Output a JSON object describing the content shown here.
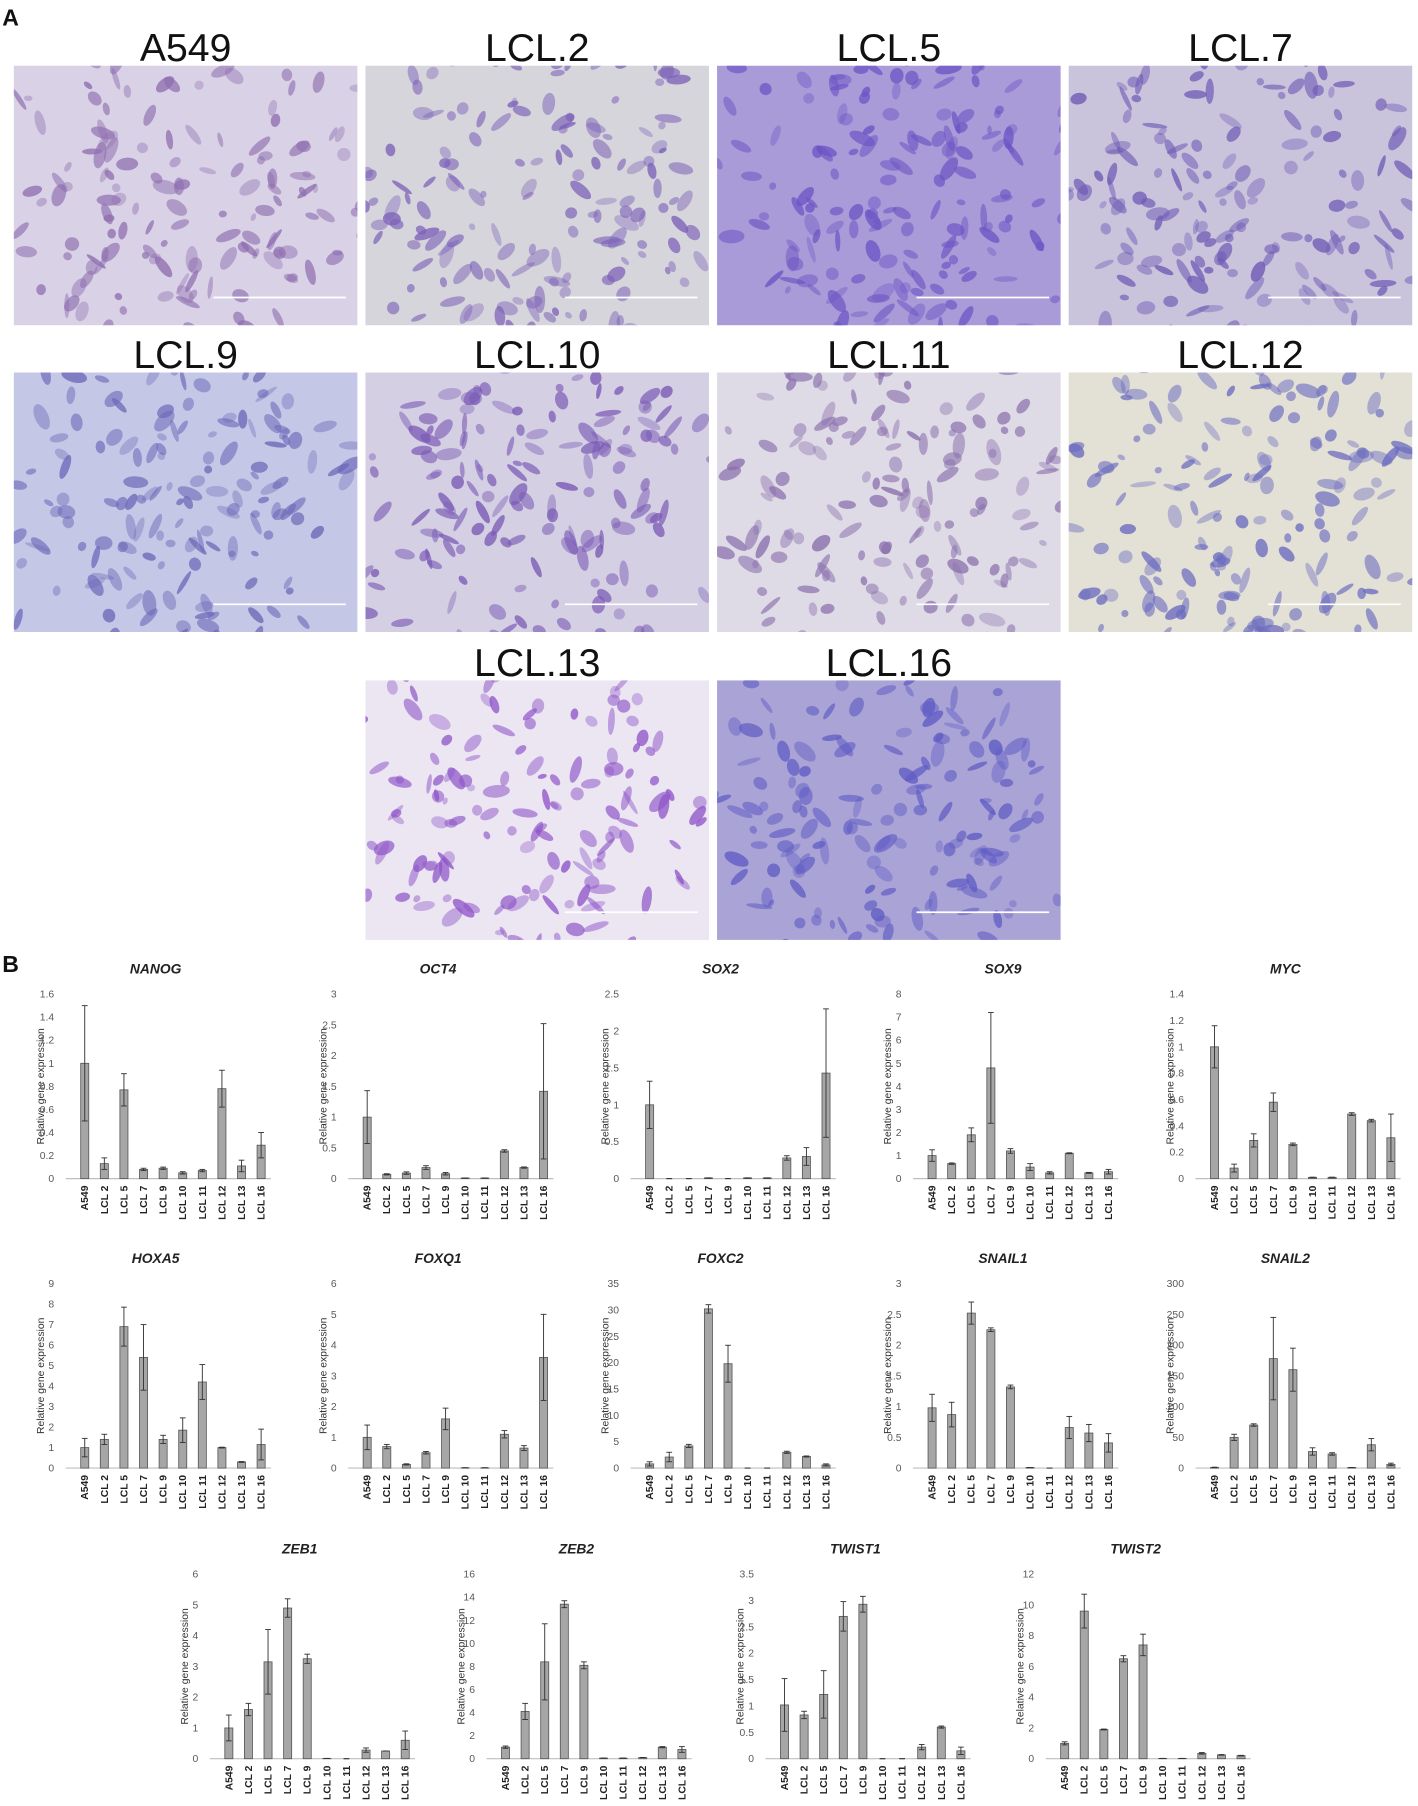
{
  "panel_a": {
    "label": "A",
    "images": [
      "A549",
      "LCL.2",
      "LCL.5",
      "LCL.7",
      "LCL.9",
      "LCL.10",
      "LCL.11",
      "LCL.12",
      "LCL.13",
      "LCL.16"
    ]
  },
  "panel_b": {
    "label": "B"
  },
  "chart_data": [
    {
      "type": "bar",
      "title": "NANOG",
      "ylabel": "Relative gene expression",
      "color": "#a6a6a6",
      "categories": [
        "A549",
        "LCL 2",
        "LCL 5",
        "LCL 7",
        "LCL 9",
        "LCL 10",
        "LCL 11",
        "LCL 12",
        "LCL 13",
        "LCL 16"
      ],
      "values": [
        1.0,
        0.13,
        0.77,
        0.08,
        0.09,
        0.05,
        0.07,
        0.78,
        0.11,
        0.29
      ],
      "errors": [
        0.5,
        0.05,
        0.14,
        0.01,
        0.01,
        0.01,
        0.01,
        0.16,
        0.05,
        0.11
      ],
      "ylim": [
        0,
        1.6
      ],
      "yticks": [
        0,
        0.2,
        0.4,
        0.6,
        0.8,
        1,
        1.2,
        1.4,
        1.6
      ]
    },
    {
      "type": "bar",
      "title": "OCT4",
      "ylabel": "Relative gene expression",
      "color": "#a6a6a6",
      "categories": [
        "A549",
        "LCL 2",
        "LCL 5",
        "LCL 7",
        "LCL 9",
        "LCL 10",
        "LCL 11",
        "LCL 12",
        "LCL 13",
        "LCL 16"
      ],
      "values": [
        1.0,
        0.07,
        0.09,
        0.18,
        0.08,
        0.01,
        0.01,
        0.45,
        0.18,
        1.42
      ],
      "errors": [
        0.43,
        0.01,
        0.02,
        0.03,
        0.02,
        0,
        0,
        0.02,
        0.01,
        1.1
      ],
      "ylim": [
        0,
        3
      ],
      "yticks": [
        0,
        0.5,
        1,
        1.5,
        2,
        2.5,
        3
      ]
    },
    {
      "type": "bar",
      "title": "SOX2",
      "ylabel": "Relative gene expression",
      "color": "#a6a6a6",
      "categories": [
        "A549",
        "LCL 2",
        "LCL 5",
        "LCL 7",
        "LCL 9",
        "LCL 10",
        "LCL 11",
        "LCL 12",
        "LCL 13",
        "LCL 16"
      ],
      "values": [
        1.0,
        0,
        0,
        0.01,
        0,
        0.01,
        0.01,
        0.28,
        0.3,
        1.43
      ],
      "errors": [
        0.32,
        0,
        0,
        0,
        0,
        0,
        0,
        0.03,
        0.12,
        0.87
      ],
      "ylim": [
        0,
        2.5
      ],
      "yticks": [
        0,
        0.5,
        1,
        1.5,
        2,
        2.5
      ]
    },
    {
      "type": "bar",
      "title": "SOX9",
      "ylabel": "Relative gene expression",
      "color": "#a6a6a6",
      "categories": [
        "A549",
        "LCL 2",
        "LCL 5",
        "LCL 7",
        "LCL 9",
        "LCL 10",
        "LCL 11",
        "LCL 12",
        "LCL 13",
        "LCL 16"
      ],
      "values": [
        1.0,
        0.65,
        1.9,
        4.8,
        1.2,
        0.5,
        0.25,
        1.1,
        0.25,
        0.3
      ],
      "errors": [
        0.25,
        0.03,
        0.3,
        2.4,
        0.1,
        0.15,
        0.05,
        0.02,
        0.02,
        0.1
      ],
      "ylim": [
        0,
        8
      ],
      "yticks": [
        0,
        1,
        2,
        3,
        4,
        5,
        6,
        7,
        8
      ]
    },
    {
      "type": "bar",
      "title": "MYC",
      "ylabel": "Relative gene expression",
      "color": "#a6a6a6",
      "categories": [
        "A549",
        "LCL 2",
        "LCL 5",
        "LCL 7",
        "LCL 9",
        "LCL 10",
        "LCL 11",
        "LCL 12",
        "LCL 13",
        "LCL 16"
      ],
      "values": [
        1.0,
        0.08,
        0.29,
        0.58,
        0.26,
        0.01,
        0.01,
        0.49,
        0.44,
        0.31
      ],
      "errors": [
        0.16,
        0.03,
        0.05,
        0.07,
        0.01,
        0,
        0,
        0.01,
        0.01,
        0.18
      ],
      "ylim": [
        0,
        1.4
      ],
      "yticks": [
        0,
        0.2,
        0.4,
        0.6,
        0.8,
        1,
        1.2,
        1.4
      ]
    },
    {
      "type": "bar",
      "title": "HOXA5",
      "ylabel": "Relative gene expression",
      "color": "#a6a6a6",
      "categories": [
        "A549",
        "LCL 2",
        "LCL 5",
        "LCL 7",
        "LCL 9",
        "LCL 10",
        "LCL 11",
        "LCL 12",
        "LCL 13",
        "LCL 16"
      ],
      "values": [
        1.0,
        1.4,
        6.9,
        5.4,
        1.4,
        1.85,
        4.2,
        1.0,
        0.3,
        1.15
      ],
      "errors": [
        0.45,
        0.25,
        0.95,
        1.6,
        0.2,
        0.6,
        0.85,
        0.02,
        0.02,
        0.75
      ],
      "ylim": [
        0,
        9
      ],
      "yticks": [
        0,
        1,
        2,
        3,
        4,
        5,
        6,
        7,
        8,
        9
      ]
    },
    {
      "type": "bar",
      "title": "FOXQ1",
      "ylabel": "Relative gene expression",
      "color": "#a6a6a6",
      "categories": [
        "A549",
        "LCL 2",
        "LCL 5",
        "LCL 7",
        "LCL 9",
        "LCL 10",
        "LCL 11",
        "LCL 12",
        "LCL 13",
        "LCL 16"
      ],
      "values": [
        1.0,
        0.7,
        0.12,
        0.5,
        1.6,
        0.01,
        0.01,
        1.1,
        0.65,
        3.6
      ],
      "errors": [
        0.4,
        0.07,
        0.02,
        0.04,
        0.35,
        0,
        0,
        0.12,
        0.08,
        1.4
      ],
      "ylim": [
        0,
        6
      ],
      "yticks": [
        0,
        1,
        2,
        3,
        4,
        5,
        6
      ]
    },
    {
      "type": "bar",
      "title": "FOXC2",
      "ylabel": "Relative gene expression",
      "color": "#a6a6a6",
      "categories": [
        "A549",
        "LCL 2",
        "LCL 5",
        "LCL 7",
        "LCL 9",
        "LCL 10",
        "LCL 11",
        "LCL 12",
        "LCL 13",
        "LCL 16"
      ],
      "values": [
        0.8,
        2.1,
        4.2,
        30.2,
        19.8,
        0,
        0,
        3.0,
        2.2,
        0.6
      ],
      "errors": [
        0.4,
        0.9,
        0.3,
        0.8,
        3.5,
        0,
        0,
        0.2,
        0.1,
        0.2
      ],
      "ylim": [
        0,
        35
      ],
      "yticks": [
        0,
        5,
        10,
        15,
        20,
        25,
        30,
        35
      ]
    },
    {
      "type": "bar",
      "title": "SNAIL1",
      "ylabel": "Relative gene expression",
      "color": "#a6a6a6",
      "categories": [
        "A549",
        "LCL 2",
        "LCL 5",
        "LCL 7",
        "LCL 9",
        "LCL 10",
        "LCL 11",
        "LCL 12",
        "LCL 13",
        "LCL 16"
      ],
      "values": [
        0.98,
        0.87,
        2.52,
        2.25,
        1.32,
        0.01,
        0,
        0.66,
        0.57,
        0.41
      ],
      "errors": [
        0.22,
        0.2,
        0.18,
        0.03,
        0.03,
        0,
        0,
        0.18,
        0.14,
        0.15
      ],
      "ylim": [
        0,
        3
      ],
      "yticks": [
        0,
        0.5,
        1,
        1.5,
        2,
        2.5,
        3
      ]
    },
    {
      "type": "bar",
      "title": "SNAIL2",
      "ylabel": "Relative gene expression",
      "color": "#a6a6a6",
      "categories": [
        "A549",
        "LCL 2",
        "LCL 5",
        "LCL 7",
        "LCL 9",
        "LCL 10",
        "LCL 11",
        "LCL 12",
        "LCL 13",
        "LCL 16"
      ],
      "values": [
        1,
        50,
        70,
        178,
        160,
        27,
        23,
        1,
        38,
        6
      ],
      "errors": [
        0.5,
        5,
        2,
        67,
        35,
        6,
        2,
        0,
        10,
        2
      ],
      "ylim": [
        0,
        300
      ],
      "yticks": [
        0,
        50,
        100,
        150,
        200,
        250,
        300
      ]
    },
    {
      "type": "bar",
      "title": "ZEB1",
      "ylabel": "Relative gene expression",
      "color": "#a6a6a6",
      "categories": [
        "A549",
        "LCL 2",
        "LCL 5",
        "LCL 7",
        "LCL 9",
        "LCL 10",
        "LCL 11",
        "LCL 12",
        "LCL 13",
        "LCL 16"
      ],
      "values": [
        1.0,
        1.6,
        3.15,
        4.9,
        3.25,
        0.01,
        0,
        0.28,
        0.25,
        0.6
      ],
      "errors": [
        0.42,
        0.2,
        1.05,
        0.3,
        0.15,
        0,
        0,
        0.07,
        0,
        0.3
      ],
      "ylim": [
        0,
        6
      ],
      "yticks": [
        0,
        1,
        2,
        3,
        4,
        5,
        6
      ]
    },
    {
      "type": "bar",
      "title": "ZEB2",
      "ylabel": "Relative gene expression",
      "color": "#a6a6a6",
      "categories": [
        "A549",
        "LCL 2",
        "LCL 5",
        "LCL 7",
        "LCL 9",
        "LCL 10",
        "LCL 11",
        "LCL 12",
        "LCL 13",
        "LCL 16"
      ],
      "values": [
        1.0,
        4.1,
        8.4,
        13.4,
        8.1,
        0.05,
        0.05,
        0.1,
        1.0,
        0.8
      ],
      "errors": [
        0.1,
        0.7,
        3.3,
        0.3,
        0.3,
        0,
        0,
        0,
        0.05,
        0.25
      ],
      "ylim": [
        0,
        16
      ],
      "yticks": [
        0,
        2,
        4,
        6,
        8,
        10,
        12,
        14,
        16
      ]
    },
    {
      "type": "bar",
      "title": "TWIST1",
      "ylabel": "Relative gene expression",
      "color": "#a6a6a6",
      "categories": [
        "A549",
        "LCL 2",
        "LCL 5",
        "LCL 7",
        "LCL 9",
        "LCL 10",
        "LCL 11",
        "LCL 12",
        "LCL 13",
        "LCL 16"
      ],
      "values": [
        1.02,
        0.83,
        1.22,
        2.7,
        2.93,
        0,
        0,
        0.22,
        0.6,
        0.15
      ],
      "errors": [
        0.5,
        0.07,
        0.45,
        0.28,
        0.15,
        0,
        0,
        0.05,
        0.02,
        0.07
      ],
      "ylim": [
        0,
        3.5
      ],
      "yticks": [
        0,
        0.5,
        1,
        1.5,
        2,
        2.5,
        3,
        3.5
      ]
    },
    {
      "type": "bar",
      "title": "TWIST2",
      "ylabel": "Relative gene expression",
      "color": "#a6a6a6",
      "categories": [
        "A549",
        "LCL 2",
        "LCL 5",
        "LCL 7",
        "LCL 9",
        "LCL 10",
        "LCL 11",
        "LCL 12",
        "LCL 13",
        "LCL 16"
      ],
      "values": [
        1.0,
        9.6,
        1.9,
        6.5,
        7.4,
        0.02,
        0.02,
        0.35,
        0.25,
        0.2
      ],
      "errors": [
        0.1,
        1.1,
        0.03,
        0.2,
        0.7,
        0,
        0,
        0.05,
        0.02,
        0.02
      ],
      "ylim": [
        0,
        12
      ],
      "yticks": [
        0,
        2,
        4,
        6,
        8,
        10,
        12
      ]
    }
  ]
}
